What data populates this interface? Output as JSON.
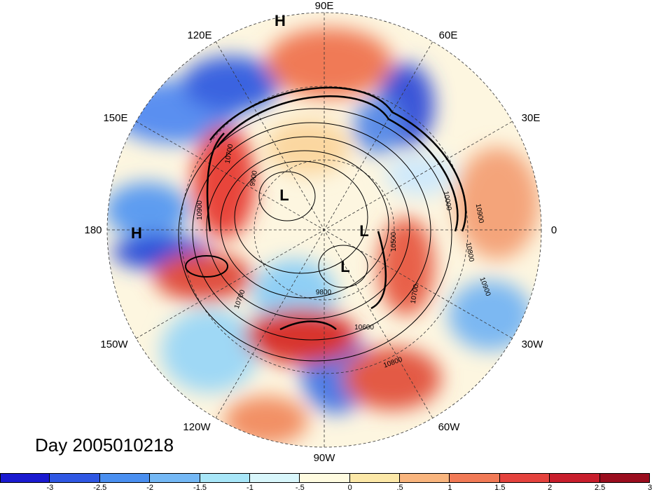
{
  "title": "Day 2005010218",
  "longitude_labels": [
    "90E",
    "60E",
    "30E",
    "0",
    "30W",
    "60W",
    "90W",
    "120W",
    "150W",
    "180",
    "150E",
    "120E"
  ],
  "pressure_centers": [
    "H",
    "H",
    "L",
    "L",
    "L"
  ],
  "contour_labels": [
    "10900",
    "10700",
    "10600",
    "10800",
    "10900",
    "10800",
    "10900",
    "10700",
    "9800",
    "9900",
    "10500",
    "10000",
    "10700"
  ],
  "colorbar": {
    "labels": [
      "-3",
      "-2.5",
      "-2",
      "-1.5",
      "-1",
      "-.5",
      "0",
      ".5",
      "1",
      "1.5",
      "2",
      "2.5",
      "3"
    ],
    "colors": [
      "#1a1ad0",
      "#2f57e3",
      "#4a8ff0",
      "#74b8f5",
      "#a8e6f8",
      "#d8f6fb",
      "#fffbe0",
      "#fce8a8",
      "#f9b57e",
      "#f17a56",
      "#e4423d",
      "#c81e2c",
      "#9a0d1e"
    ]
  }
}
